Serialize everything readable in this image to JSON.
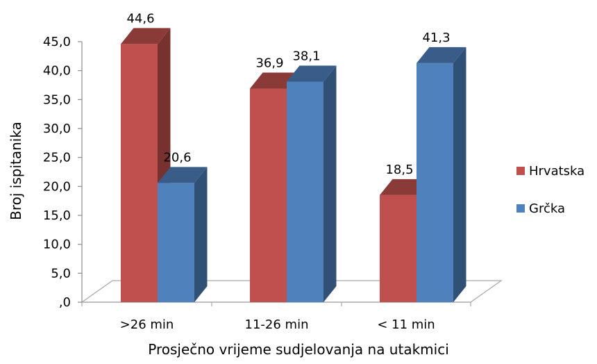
{
  "chart_data": {
    "type": "bar",
    "three_d": true,
    "xlabel": "Prosječno vrijeme sudjelovanja na utakmici",
    "ylabel": "Broj ispitanika",
    "categories": [
      ">26 min",
      "11-26 min",
      "< 11 min"
    ],
    "series": [
      {
        "name": "Hrvatska",
        "values": [
          44.6,
          36.9,
          18.5
        ],
        "labels": [
          "44,6",
          "36,9",
          "18,5"
        ],
        "color": "#C0504D"
      },
      {
        "name": "Grčka",
        "values": [
          20.6,
          38.1,
          41.3
        ],
        "labels": [
          "20,6",
          "38,1",
          "41,3"
        ],
        "color": "#4F81BD"
      }
    ],
    "ylim": [
      0,
      45
    ],
    "yticks": [
      ",0",
      "5,0",
      "10,0",
      "15,0",
      "20,0",
      "25,0",
      "30,0",
      "35,0",
      "40,0",
      "45,0"
    ],
    "legend_position": "right",
    "grid": false
  }
}
